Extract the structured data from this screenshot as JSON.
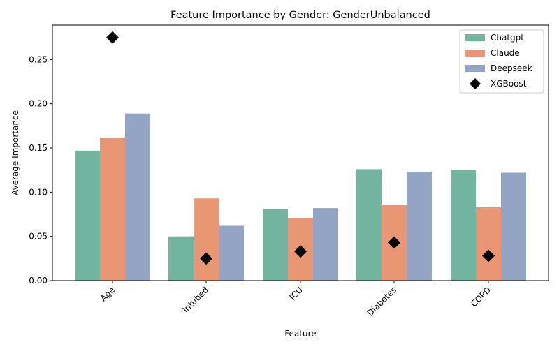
{
  "chart_data": {
    "type": "bar",
    "title": "Feature Importance by Gender: GenderUnbalanced",
    "xlabel": "Feature",
    "ylabel": "Average Importance",
    "categories": [
      "Age",
      "Intubed",
      "ICU",
      "Diabetes",
      "COPD"
    ],
    "series": [
      {
        "name": "Chatgpt",
        "color": "#72b49f",
        "values": [
          0.147,
          0.05,
          0.081,
          0.126,
          0.125
        ]
      },
      {
        "name": "Claude",
        "color": "#e99675",
        "values": [
          0.162,
          0.093,
          0.071,
          0.086,
          0.083
        ]
      },
      {
        "name": "Deepseek",
        "color": "#93a4c4",
        "values": [
          0.189,
          0.062,
          0.082,
          0.123,
          0.122
        ]
      }
    ],
    "markers": {
      "name": "XGBoost",
      "color": "#000000",
      "shape": "diamond",
      "values": [
        0.275,
        0.025,
        0.033,
        0.043,
        0.028
      ]
    },
    "ylim": [
      0,
      0.289
    ],
    "yticks": [
      "0.00",
      "0.05",
      "0.10",
      "0.15",
      "0.20",
      "0.25"
    ],
    "legend_position": "top-right",
    "grid": false
  }
}
